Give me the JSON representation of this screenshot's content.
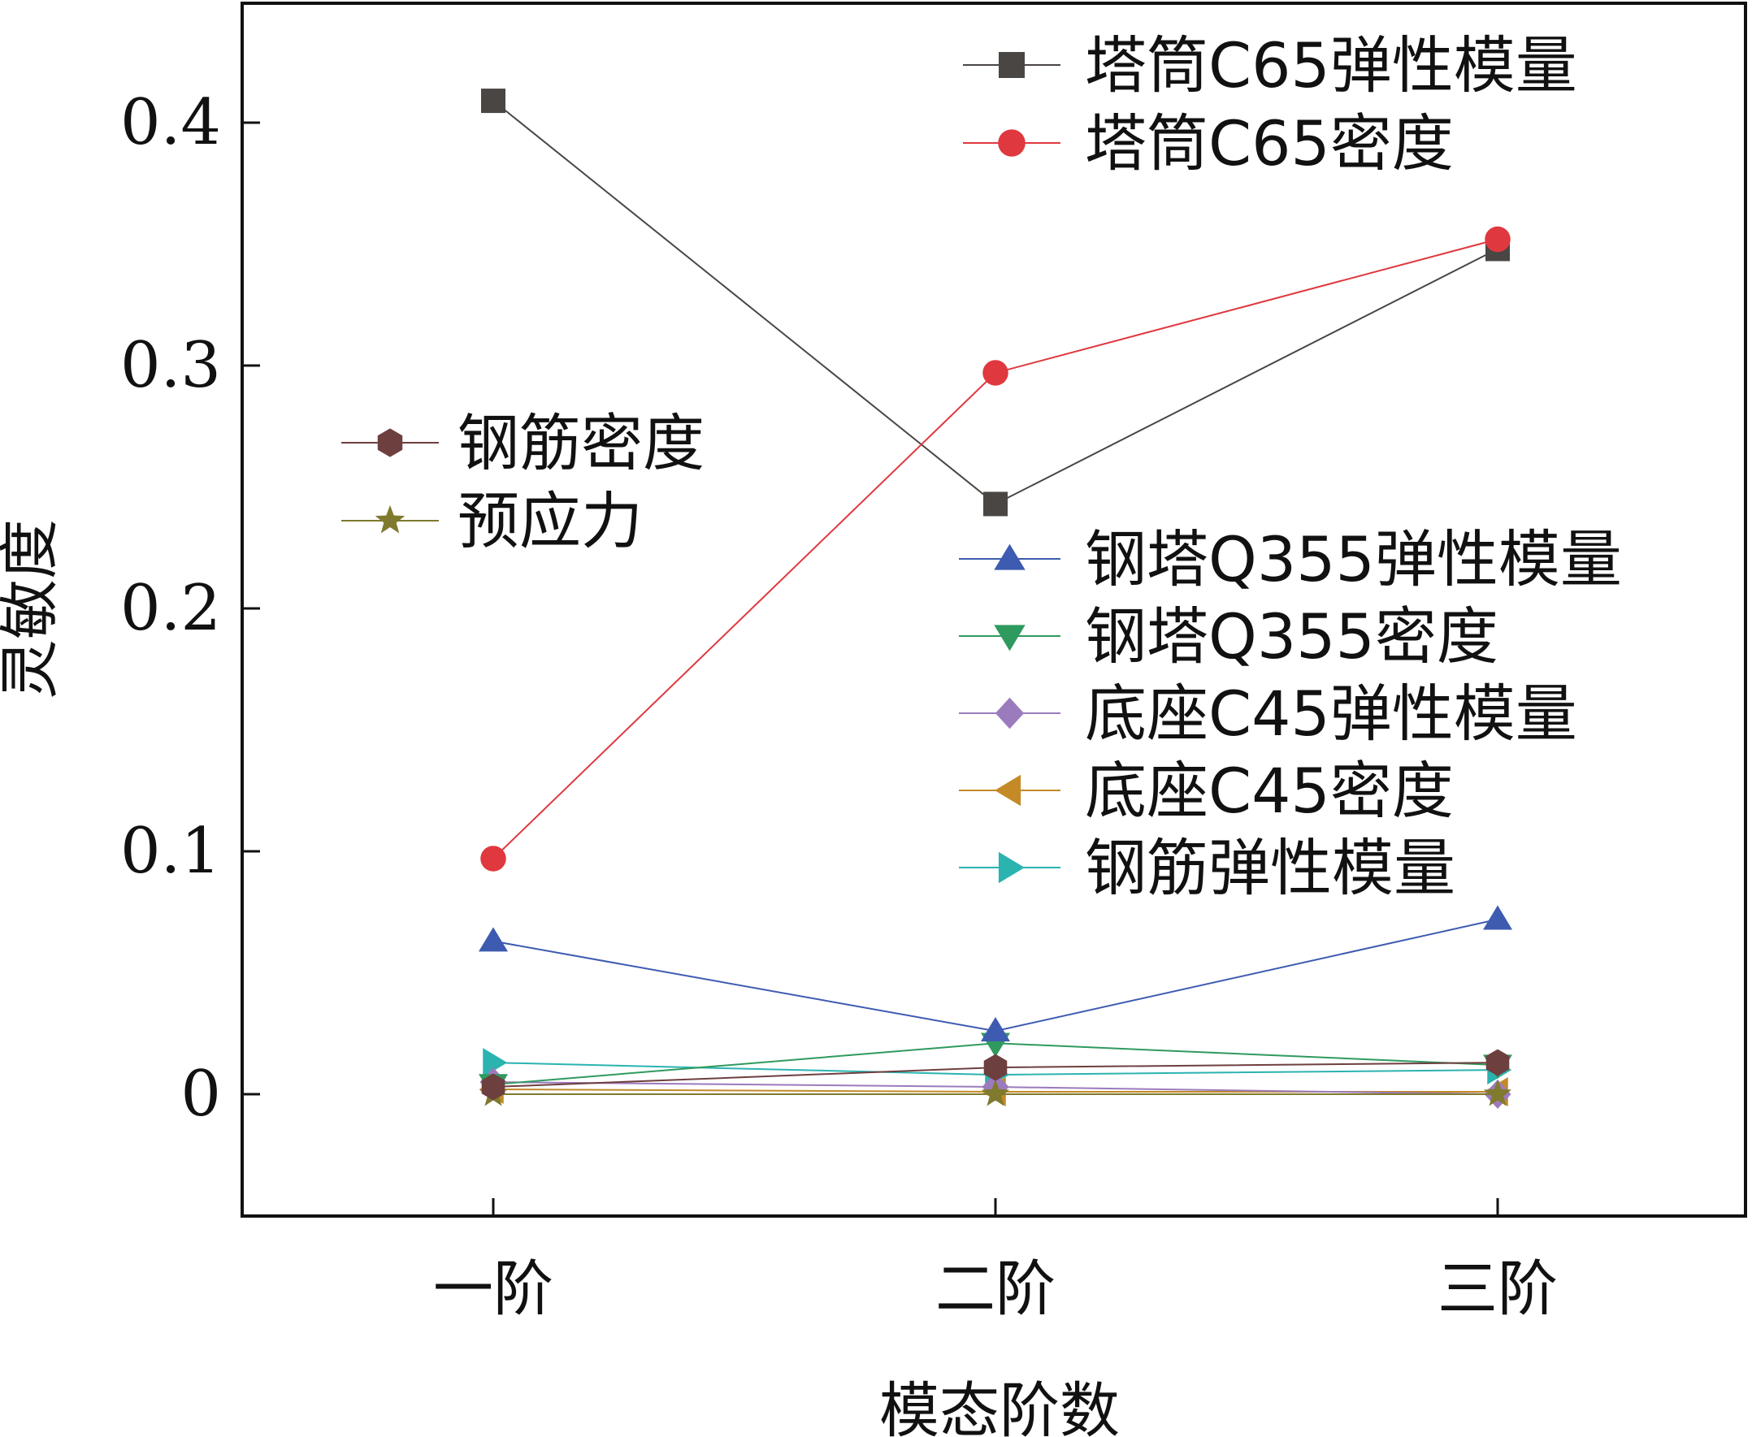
{
  "chart_data": {
    "type": "line",
    "title": "",
    "xlabel": "模态阶数",
    "ylabel": "灵敏度",
    "categories": [
      "一阶",
      "二阶",
      "三阶"
    ],
    "ylim": [
      -0.05,
      0.45
    ],
    "yticks": [
      0,
      0.1,
      0.2,
      0.3,
      0.4
    ],
    "ytick_labels": [
      "0",
      "0.1",
      "0.2",
      "0.3",
      "0.4"
    ],
    "grid": false,
    "series": [
      {
        "name": "塔筒C65弹性模量",
        "marker": "square",
        "color": "#4a4644",
        "values": [
          0.409,
          0.243,
          0.348
        ]
      },
      {
        "name": "塔筒C65密度",
        "marker": "circle",
        "color": "#e0383f",
        "values": [
          0.097,
          0.297,
          0.352
        ]
      },
      {
        "name": "钢筋密度",
        "marker": "hexagon",
        "color": "#6e3f3f",
        "values": [
          0.003,
          0.011,
          0.013
        ]
      },
      {
        "name": "预应力",
        "marker": "star",
        "color": "#7f7a2e",
        "values": [
          0.0,
          0.0,
          0.0
        ]
      },
      {
        "name": "钢塔Q355弹性模量",
        "marker": "triangle-up",
        "color": "#3d5bb0",
        "values": [
          0.063,
          0.026,
          0.072
        ]
      },
      {
        "name": "钢塔Q355密度",
        "marker": "triangle-down",
        "color": "#2f9a5e",
        "values": [
          0.004,
          0.021,
          0.012
        ]
      },
      {
        "name": "底座C45弹性模量",
        "marker": "diamond",
        "color": "#9b7bbd",
        "values": [
          0.005,
          0.003,
          0.0
        ]
      },
      {
        "name": "底座C45密度",
        "marker": "triangle-left",
        "color": "#c48a27",
        "values": [
          0.002,
          0.001,
          0.001
        ]
      },
      {
        "name": "钢筋弹性模量",
        "marker": "triangle-right",
        "color": "#2bb3b0",
        "values": [
          0.013,
          0.008,
          0.01
        ]
      }
    ],
    "legends": [
      {
        "position": "top-right",
        "items": [
          "塔筒C65弹性模量",
          "塔筒C65密度"
        ]
      },
      {
        "position": "middle-left",
        "items": [
          "钢筋密度",
          "预应力"
        ]
      },
      {
        "position": "middle-right",
        "items": [
          "钢塔Q355弹性模量",
          "钢塔Q355密度",
          "底座C45弹性模量",
          "底座C45密度",
          "钢筋弹性模量"
        ]
      }
    ]
  }
}
